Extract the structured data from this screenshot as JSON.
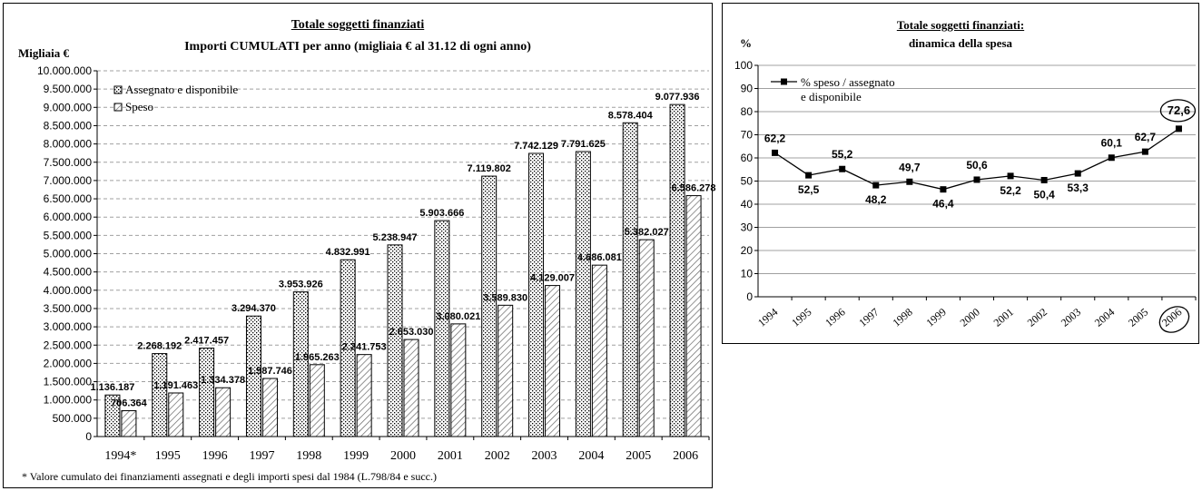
{
  "colors": {
    "axis": "#000000",
    "grid": "#a0a0a0",
    "bar_fill": "#ffffff",
    "line": "#000000"
  },
  "chart_data": [
    {
      "type": "bar",
      "title": "Totale soggetti finanziati",
      "subtitle": "Importi CUMULATI per anno (migliaia € al 31.12 di ogni anno)",
      "ylabel": "Migliaia €",
      "xlabel": "",
      "categories": [
        "1994*",
        "1995",
        "1996",
        "1997",
        "1998",
        "1999",
        "2000",
        "2001",
        "2002",
        "2003",
        "2004",
        "2005",
        "2006"
      ],
      "series": [
        {
          "name": "Assegnato e disponibile",
          "pattern": "dots",
          "values": [
            1136187,
            2268192,
            2417457,
            3294370,
            3953926,
            4832991,
            5238947,
            5903666,
            7119802,
            7742129,
            7791625,
            8578404,
            9077936
          ],
          "labels": [
            "1.136.187",
            "2.268.192",
            "2.417.457",
            "3.294.370",
            "3.953.926",
            "4.832.991",
            "5.238.947",
            "5.903.666",
            "7.119.802",
            "7.742.129",
            "7.791.625",
            "8.578.404",
            "9.077.936"
          ]
        },
        {
          "name": "Speso",
          "pattern": "hatch",
          "values": [
            706364,
            1191463,
            1334378,
            1587746,
            1965263,
            2241753,
            2653030,
            3080021,
            3589830,
            4129007,
            4686081,
            5382027,
            6586278
          ],
          "labels": [
            "706.364",
            "1.191.463",
            "1.334.378",
            "1.587.746",
            "1.965.263",
            "2.241.753",
            "2.653.030",
            "3.080.021",
            "3.589.830",
            "4.129.007",
            "4.686.081",
            "5.382.027",
            "6.586.278"
          ]
        }
      ],
      "ylim": [
        0,
        10000000
      ],
      "yticks": [
        "0",
        "500.000",
        "1.000.000",
        "1.500.000",
        "2.000.000",
        "2.500.000",
        "3.000.000",
        "3.500.000",
        "4.000.000",
        "4.500.000",
        "5.000.000",
        "5.500.000",
        "6.000.000",
        "6.500.000",
        "7.000.000",
        "7.500.000",
        "8.000.000",
        "8.500.000",
        "9.000.000",
        "9.500.000",
        "10.000.000"
      ],
      "grid": true,
      "legend": "top-left",
      "footnote": "* Valore cumulato dei finanziamenti assegnati e degli importi spesi dal 1984 (L.798/84 e succ.)"
    },
    {
      "type": "line",
      "title": "Totale soggetti finanziati:",
      "subtitle": "dinamica della spesa",
      "ylabel": "%",
      "xlabel": "",
      "categories": [
        "1994",
        "1995",
        "1996",
        "1997",
        "1998",
        "1999",
        "2000",
        "2001",
        "2002",
        "2003",
        "2004",
        "2005",
        "2006"
      ],
      "series": [
        {
          "name": "% speso / assegnato e disponibile",
          "values": [
            62.2,
            52.5,
            55.2,
            48.2,
            49.7,
            46.4,
            50.6,
            52.2,
            50.4,
            53.3,
            60.1,
            62.7,
            72.6
          ],
          "labels": [
            "62,2",
            "52,5",
            "55,2",
            "48,2",
            "49,7",
            "46,4",
            "50,6",
            "52,2",
            "50,4",
            "53,3",
            "60,1",
            "62,7",
            "72,6"
          ]
        }
      ],
      "ylim": [
        0,
        100
      ],
      "yticks": [
        "0",
        "10",
        "20",
        "30",
        "40",
        "50",
        "60",
        "70",
        "80",
        "90",
        "100"
      ],
      "grid": true,
      "legend": "top-left",
      "highlight": "2006"
    }
  ]
}
